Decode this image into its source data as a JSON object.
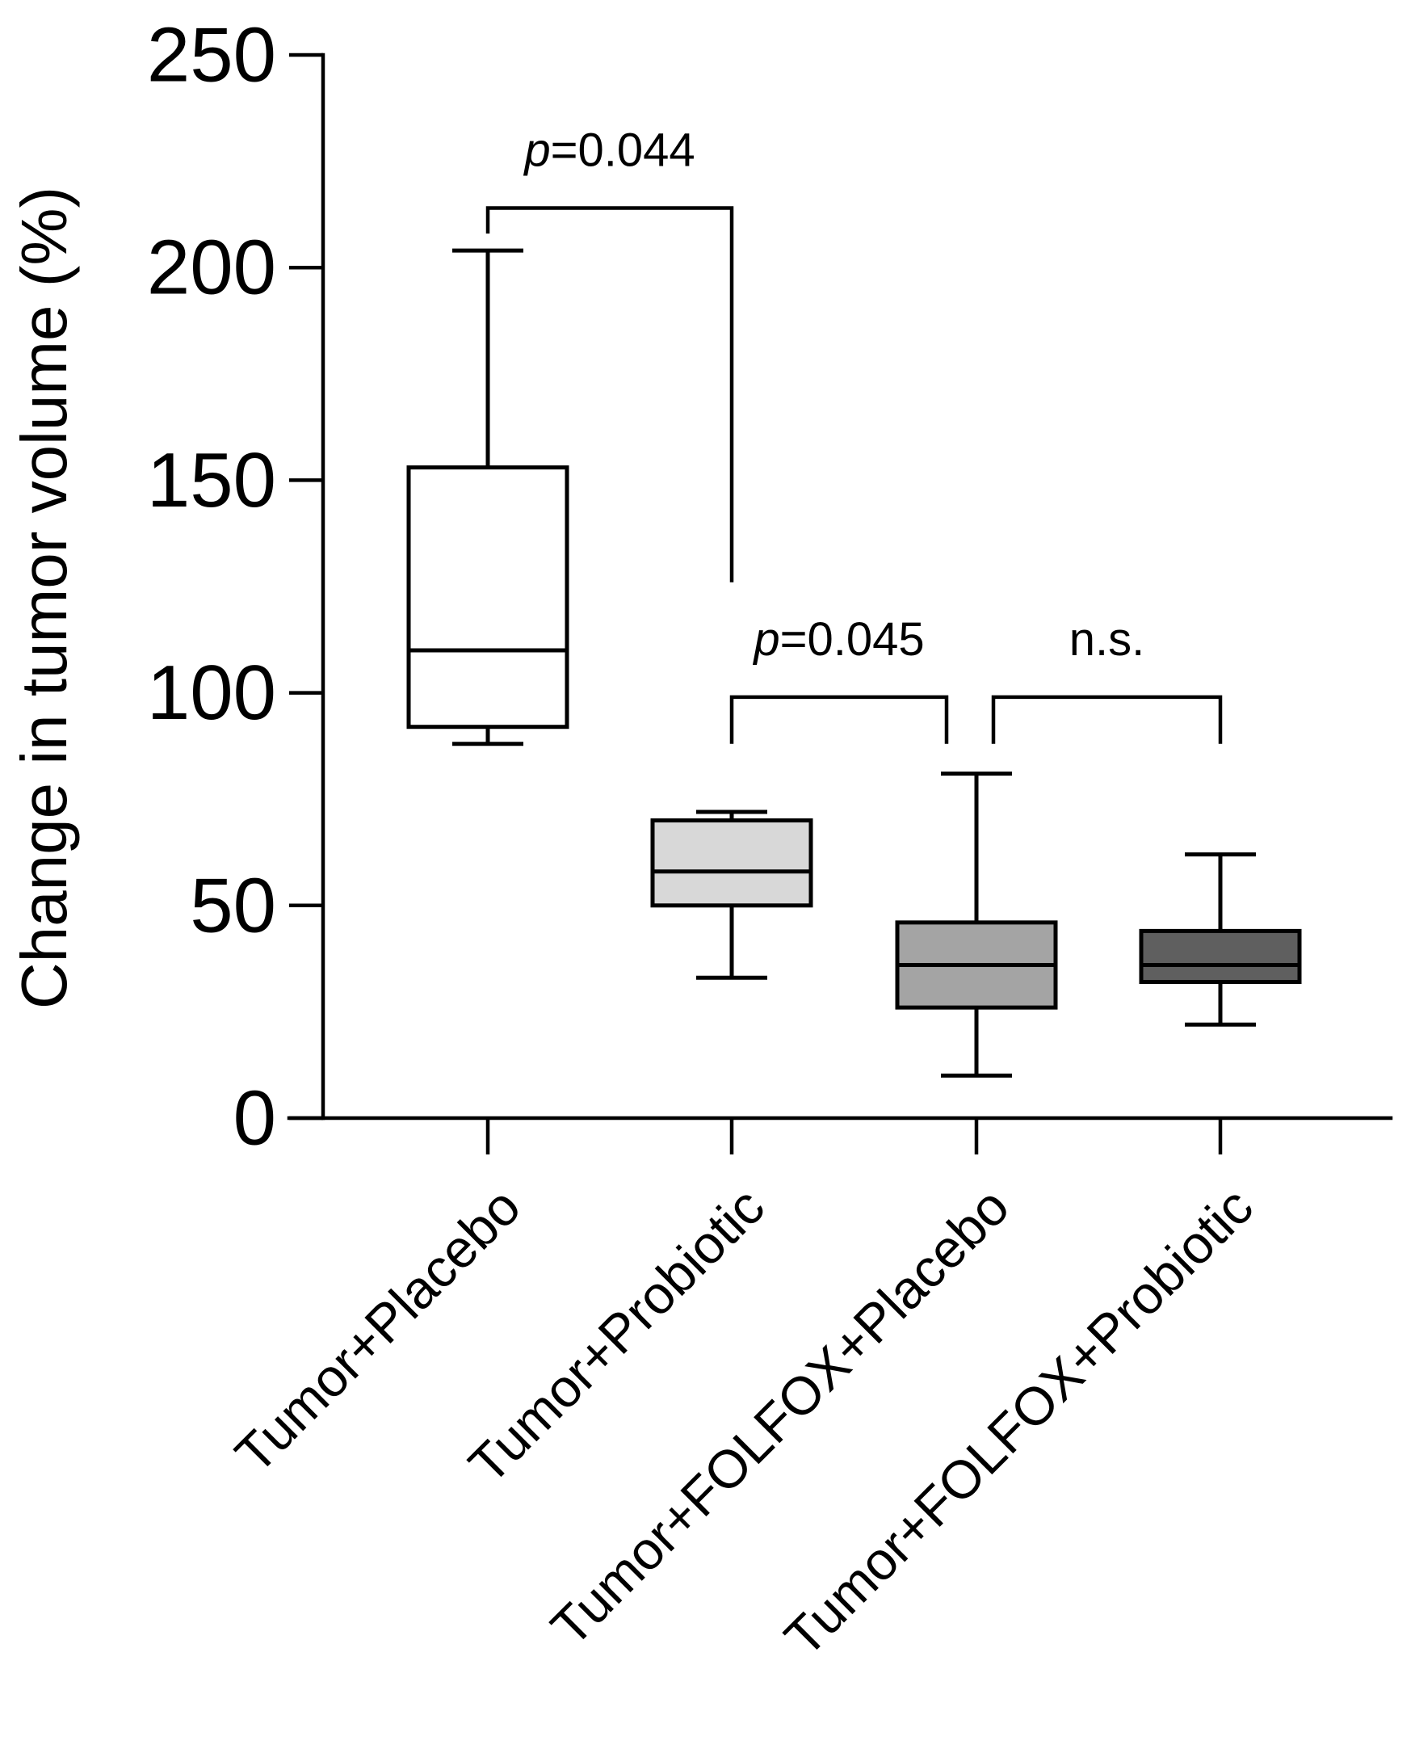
{
  "chart_data": {
    "type": "box",
    "ylabel": "Change in tumor volume (%)",
    "xlabel": "",
    "ylim": [
      0,
      250
    ],
    "yticks": [
      0,
      50,
      100,
      150,
      200,
      250
    ],
    "yticklabels": [
      "0",
      "50",
      "100",
      "150",
      "200",
      "250"
    ],
    "categories": [
      "Tumor+Placebo",
      "Tumor+Probiotic",
      "Tumor+FOLFOX+Placebo",
      "Tumor+FOLFOX+Probiotic"
    ],
    "boxes": [
      {
        "name": "Tumor+Placebo",
        "min": 88,
        "q1": 92,
        "median": 110,
        "q3": 153,
        "max": 204,
        "fill": "#ffffff"
      },
      {
        "name": "Tumor+Probiotic",
        "min": 33,
        "q1": 50,
        "median": 58,
        "q3": 70,
        "max": 72,
        "fill": "#d8d8d8"
      },
      {
        "name": "Tumor+FOLFOX+Placebo",
        "min": 10,
        "q1": 26,
        "median": 36,
        "q3": 46,
        "max": 81,
        "fill": "#a4a4a4"
      },
      {
        "name": "Tumor+FOLFOX+Probiotic",
        "min": 22,
        "q1": 32,
        "median": 36,
        "q3": 44,
        "max": 62,
        "fill": "#5f5f5f"
      }
    ],
    "annotations": [
      {
        "from": 0,
        "to": 1,
        "top": 214,
        "left_end": 208,
        "right_end": 126,
        "prefix": "p",
        "text": "=0.044"
      },
      {
        "from": 1,
        "to": 2,
        "top": 99,
        "left_end": 88,
        "right_end": 88,
        "prefix": "p",
        "text": "=0.045"
      },
      {
        "from": 2,
        "to": 3,
        "top": 99,
        "left_end": 88,
        "right_end": 88,
        "prefix": "",
        "text": "n.s."
      }
    ]
  }
}
